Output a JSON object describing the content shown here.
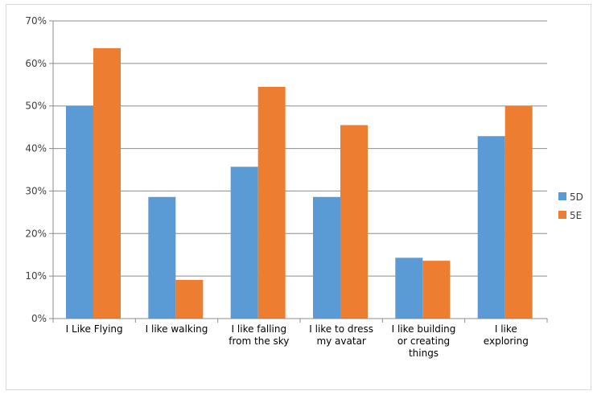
{
  "chart_data": {
    "type": "bar",
    "categories": [
      [
        "I Like Flying"
      ],
      [
        "I like walking"
      ],
      [
        "I like falling",
        "from the sky"
      ],
      [
        "I like to dress",
        "my avatar"
      ],
      [
        "I like building",
        "or creating",
        "things"
      ],
      [
        "I like",
        "exploring"
      ]
    ],
    "series": [
      {
        "name": "5D",
        "color": "#5b9bd5",
        "values": [
          50.0,
          28.6,
          35.7,
          28.6,
          14.3,
          42.9
        ]
      },
      {
        "name": "5E",
        "color": "#ed7d31",
        "values": [
          63.6,
          9.1,
          54.5,
          45.5,
          13.6,
          50.0
        ]
      }
    ],
    "ylim": [
      0,
      70
    ],
    "yticks": [
      "0%",
      "10%",
      "20%",
      "30%",
      "40%",
      "50%",
      "60%",
      "70%"
    ],
    "grid": true,
    "legend": "right",
    "title": "",
    "xlabel": "",
    "ylabel": ""
  }
}
